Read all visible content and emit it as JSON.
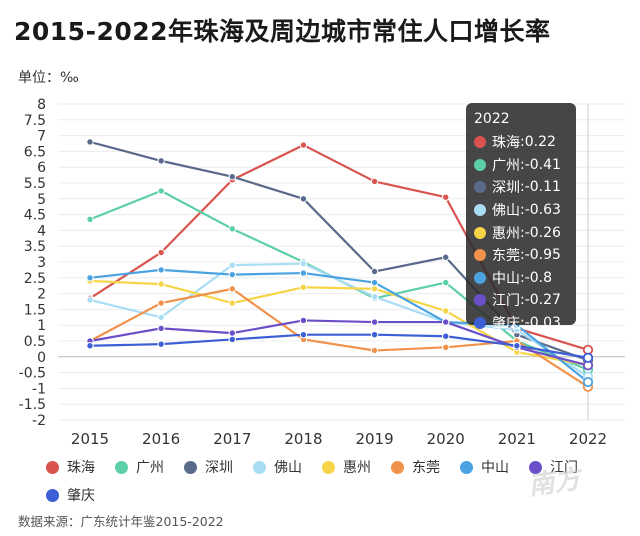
{
  "title": "2015-2022年珠海及周边城市常住人口增长率",
  "unit_label": "单位：‰",
  "source": "数据来源：广东统计年鉴2015-2022",
  "watermark": "南方",
  "tooltip": {
    "title": "2022",
    "rows": [
      {
        "name": "珠海",
        "value": "0.22"
      },
      {
        "name": "广州",
        "value": "-0.41"
      },
      {
        "name": "深圳",
        "value": "-0.11"
      },
      {
        "name": "佛山",
        "value": "-0.63"
      },
      {
        "name": "惠州",
        "value": "-0.26"
      },
      {
        "name": "东莞",
        "value": "-0.95"
      },
      {
        "name": "中山",
        "value": "-0.8"
      },
      {
        "name": "江门",
        "value": "-0.27"
      },
      {
        "name": "肇庆",
        "value": "-0.03"
      }
    ]
  },
  "chart_data": {
    "type": "line",
    "title": "2015-2022年珠海及周边城市常住人口增长率",
    "ylabel": "单位：‰",
    "x": [
      "2015",
      "2016",
      "2017",
      "2018",
      "2019",
      "2020",
      "2021",
      "2022"
    ],
    "yticks": [
      "8",
      "7.5",
      "7",
      "6.5",
      "6",
      "5.5",
      "5",
      "4.5",
      "4",
      "3.5",
      "3",
      "2.5",
      "2",
      "1.5",
      "1",
      "0.5",
      "0",
      "-0.5",
      "-1",
      "-1.5",
      "-2"
    ],
    "ylim": [
      -2,
      8
    ],
    "grid": true,
    "legend_position": "bottom",
    "series": [
      {
        "name": "珠海",
        "color": "#d9534f",
        "values": [
          1.85,
          3.3,
          5.6,
          6.7,
          5.55,
          5.05,
          0.9,
          0.22
        ]
      },
      {
        "name": "广州",
        "color": "#5ccfa6",
        "values": [
          4.35,
          5.25,
          4.05,
          3.0,
          1.85,
          2.35,
          0.5,
          -0.41
        ]
      },
      {
        "name": "深圳",
        "color": "#5a6a8a",
        "values": [
          6.8,
          6.2,
          5.7,
          5.0,
          2.7,
          3.15,
          0.7,
          -0.11
        ]
      },
      {
        "name": "佛山",
        "color": "#a9dcf5",
        "values": [
          1.8,
          1.25,
          2.9,
          2.95,
          1.9,
          1.1,
          0.85,
          -0.63
        ]
      },
      {
        "name": "惠州",
        "color": "#f5d547",
        "values": [
          2.4,
          2.3,
          1.7,
          2.2,
          2.15,
          1.45,
          0.15,
          -0.26
        ]
      },
      {
        "name": "东莞",
        "color": "#f0924c",
        "values": [
          0.5,
          1.7,
          2.15,
          0.55,
          0.2,
          0.3,
          0.5,
          -0.95
        ]
      },
      {
        "name": "中山",
        "color": "#4aa3e0",
        "values": [
          2.5,
          2.75,
          2.6,
          2.65,
          2.35,
          1.1,
          1.0,
          -0.8
        ]
      },
      {
        "name": "江门",
        "color": "#6b4fc8",
        "values": [
          0.5,
          0.9,
          0.75,
          1.15,
          1.1,
          1.1,
          0.3,
          -0.27
        ]
      },
      {
        "name": "肇庆",
        "color": "#3d5fd6",
        "values": [
          0.35,
          0.4,
          0.55,
          0.7,
          0.7,
          0.65,
          0.35,
          -0.03
        ]
      }
    ]
  }
}
